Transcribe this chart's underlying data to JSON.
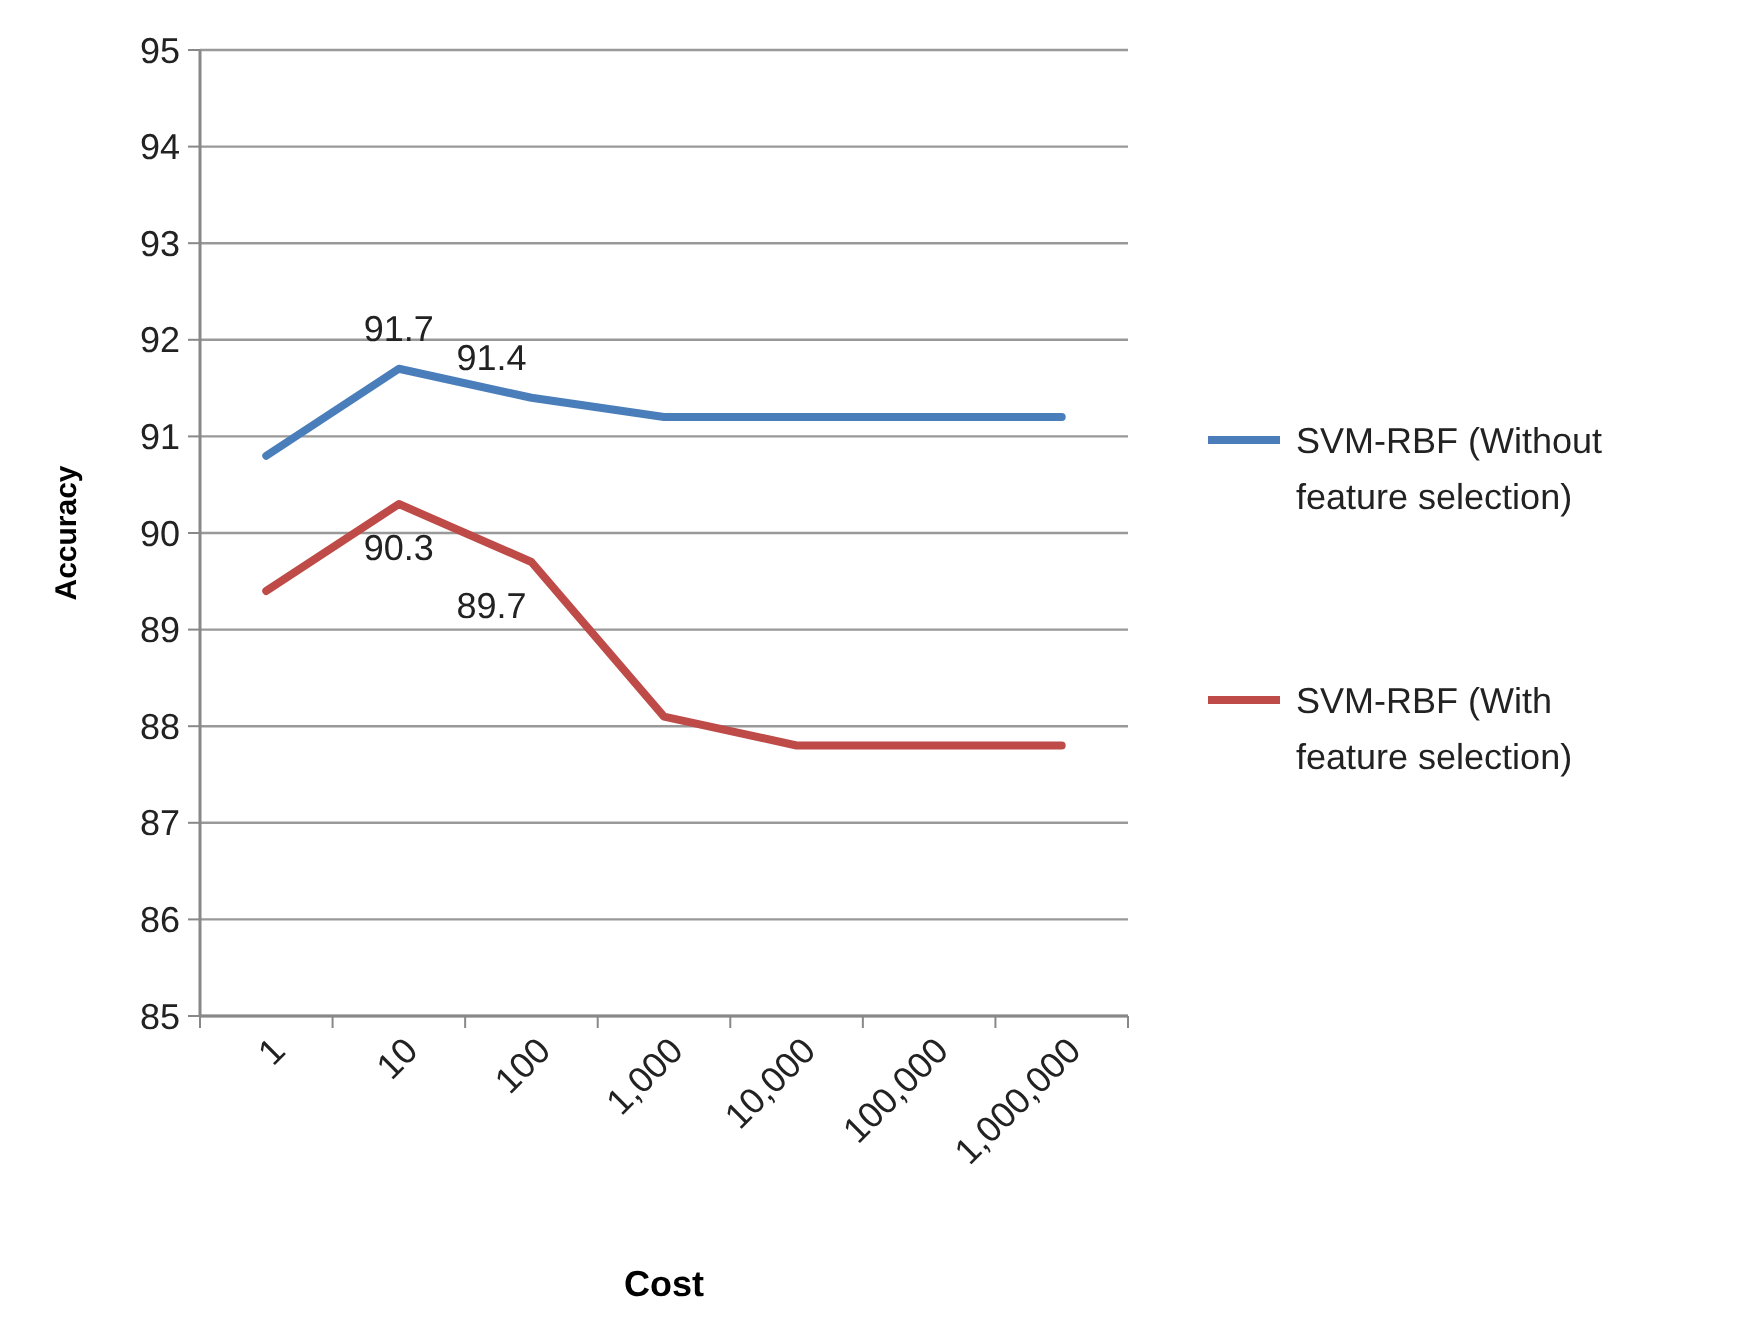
{
  "chart_data": {
    "type": "line",
    "xlabel": "Cost",
    "ylabel": "Accuracy",
    "categories": [
      "1",
      "10",
      "100",
      "1,000",
      "10,000",
      "100,000",
      "1,000,000"
    ],
    "ylim": [
      85,
      95
    ],
    "yticks": [
      85,
      86,
      87,
      88,
      89,
      90,
      91,
      92,
      93,
      94,
      95
    ],
    "grid": "y",
    "legend": "right",
    "marker": "none",
    "line_style": "solid",
    "series": [
      {
        "name": "SVM-RBF (Without feature selection)",
        "color": "#4a7ebb",
        "values": [
          90.8,
          91.7,
          91.4,
          91.2,
          91.2,
          91.2,
          91.2
        ],
        "value_labels": [
          null,
          "91.7",
          "91.4",
          null,
          null,
          null,
          null
        ]
      },
      {
        "name": "SVM-RBF (With feature selection)",
        "color": "#be4b48",
        "values": [
          89.4,
          90.3,
          89.7,
          88.1,
          87.8,
          87.8,
          87.8
        ],
        "value_labels": [
          null,
          "90.3",
          "89.7",
          null,
          null,
          null,
          null
        ]
      }
    ]
  }
}
